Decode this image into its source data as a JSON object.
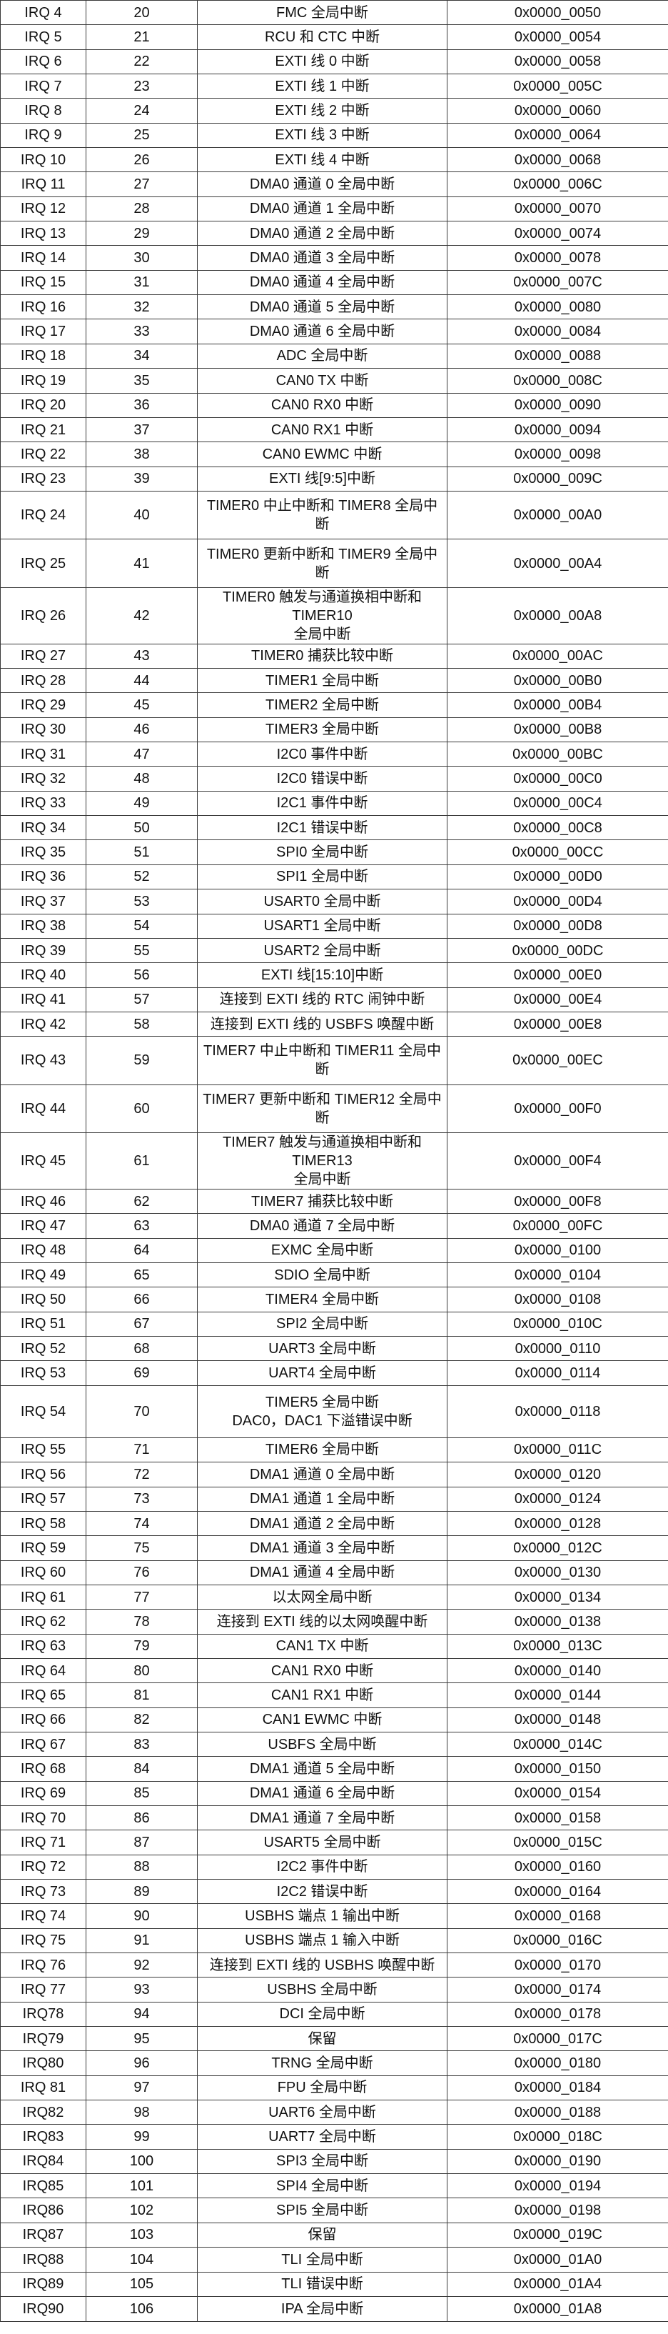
{
  "rows": [
    {
      "irq": "IRQ 4",
      "pos": "20",
      "desc": "FMC 全局中断",
      "addr": "0x0000_0050"
    },
    {
      "irq": "IRQ 5",
      "pos": "21",
      "desc": "RCU 和 CTC 中断",
      "addr": "0x0000_0054"
    },
    {
      "irq": "IRQ 6",
      "pos": "22",
      "desc": "EXTI 线 0 中断",
      "addr": "0x0000_0058"
    },
    {
      "irq": "IRQ 7",
      "pos": "23",
      "desc": "EXTI 线 1 中断",
      "addr": "0x0000_005C"
    },
    {
      "irq": "IRQ 8",
      "pos": "24",
      "desc": "EXTI 线 2 中断",
      "addr": "0x0000_0060"
    },
    {
      "irq": "IRQ 9",
      "pos": "25",
      "desc": "EXTI 线 3 中断",
      "addr": "0x0000_0064"
    },
    {
      "irq": "IRQ 10",
      "pos": "26",
      "desc": "EXTI 线 4 中断",
      "addr": "0x0000_0068"
    },
    {
      "irq": "IRQ 11",
      "pos": "27",
      "desc": "DMA0 通道 0 全局中断",
      "addr": "0x0000_006C"
    },
    {
      "irq": "IRQ 12",
      "pos": "28",
      "desc": "DMA0 通道 1 全局中断",
      "addr": "0x0000_0070"
    },
    {
      "irq": "IRQ 13",
      "pos": "29",
      "desc": "DMA0 通道 2 全局中断",
      "addr": "0x0000_0074"
    },
    {
      "irq": "IRQ 14",
      "pos": "30",
      "desc": "DMA0 通道 3 全局中断",
      "addr": "0x0000_0078"
    },
    {
      "irq": "IRQ 15",
      "pos": "31",
      "desc": "DMA0 通道 4 全局中断",
      "addr": "0x0000_007C"
    },
    {
      "irq": "IRQ 16",
      "pos": "32",
      "desc": "DMA0 通道 5 全局中断",
      "addr": "0x0000_0080"
    },
    {
      "irq": "IRQ 17",
      "pos": "33",
      "desc": "DMA0 通道 6 全局中断",
      "addr": "0x0000_0084"
    },
    {
      "irq": "IRQ 18",
      "pos": "34",
      "desc": "ADC 全局中断",
      "addr": "0x0000_0088"
    },
    {
      "irq": "IRQ 19",
      "pos": "35",
      "desc": "CAN0 TX 中断",
      "addr": "0x0000_008C"
    },
    {
      "irq": "IRQ 20",
      "pos": "36",
      "desc": "CAN0 RX0 中断",
      "addr": "0x0000_0090"
    },
    {
      "irq": "IRQ 21",
      "pos": "37",
      "desc": "CAN0 RX1 中断",
      "addr": "0x0000_0094"
    },
    {
      "irq": "IRQ 22",
      "pos": "38",
      "desc": "CAN0 EWMC 中断",
      "addr": "0x0000_0098"
    },
    {
      "irq": "IRQ 23",
      "pos": "39",
      "desc": "EXTI 线[9:5]中断",
      "addr": "0x0000_009C"
    },
    {
      "irq": "IRQ 24",
      "pos": "40",
      "desc": "TIMER0 中止中断和 TIMER8 全局中断",
      "addr": "0x0000_00A0"
    },
    {
      "irq": "IRQ 25",
      "pos": "41",
      "desc": "TIMER0 更新中断和 TIMER9 全局中断",
      "addr": "0x0000_00A4"
    },
    {
      "irq": "IRQ 26",
      "pos": "42",
      "desc": "TIMER0 触发与通道换相中断和 TIMER10\n全局中断",
      "addr": "0x0000_00A8",
      "tall": true
    },
    {
      "irq": "IRQ 27",
      "pos": "43",
      "desc": "TIMER0 捕获比较中断",
      "addr": "0x0000_00AC"
    },
    {
      "irq": "IRQ 28",
      "pos": "44",
      "desc": "TIMER1 全局中断",
      "addr": "0x0000_00B0"
    },
    {
      "irq": "IRQ 29",
      "pos": "45",
      "desc": "TIMER2 全局中断",
      "addr": "0x0000_00B4"
    },
    {
      "irq": "IRQ 30",
      "pos": "46",
      "desc": "TIMER3 全局中断",
      "addr": "0x0000_00B8"
    },
    {
      "irq": "IRQ 31",
      "pos": "47",
      "desc": "I2C0 事件中断",
      "addr": "0x0000_00BC"
    },
    {
      "irq": "IRQ 32",
      "pos": "48",
      "desc": "I2C0 错误中断",
      "addr": "0x0000_00C0"
    },
    {
      "irq": "IRQ 33",
      "pos": "49",
      "desc": "I2C1 事件中断",
      "addr": "0x0000_00C4"
    },
    {
      "irq": "IRQ 34",
      "pos": "50",
      "desc": "I2C1 错误中断",
      "addr": "0x0000_00C8"
    },
    {
      "irq": "IRQ 35",
      "pos": "51",
      "desc": "SPI0 全局中断",
      "addr": "0x0000_00CC"
    },
    {
      "irq": "IRQ 36",
      "pos": "52",
      "desc": "SPI1 全局中断",
      "addr": "0x0000_00D0"
    },
    {
      "irq": "IRQ 37",
      "pos": "53",
      "desc": "USART0 全局中断",
      "addr": "0x0000_00D4"
    },
    {
      "irq": "IRQ 38",
      "pos": "54",
      "desc": "USART1 全局中断",
      "addr": "0x0000_00D8"
    },
    {
      "irq": "IRQ 39",
      "pos": "55",
      "desc": "USART2 全局中断",
      "addr": "0x0000_00DC"
    },
    {
      "irq": "IRQ 40",
      "pos": "56",
      "desc": "EXTI 线[15:10]中断",
      "addr": "0x0000_00E0"
    },
    {
      "irq": "IRQ 41",
      "pos": "57",
      "desc": "连接到 EXTI 线的 RTC 闹钟中断",
      "addr": "0x0000_00E4"
    },
    {
      "irq": "IRQ 42",
      "pos": "58",
      "desc": "连接到 EXTI 线的 USBFS 唤醒中断",
      "addr": "0x0000_00E8"
    },
    {
      "irq": "IRQ 43",
      "pos": "59",
      "desc": "TIMER7 中止中断和 TIMER11 全局中断",
      "addr": "0x0000_00EC"
    },
    {
      "irq": "IRQ 44",
      "pos": "60",
      "desc": "TIMER7 更新中断和 TIMER12 全局中断",
      "addr": "0x0000_00F0"
    },
    {
      "irq": "IRQ 45",
      "pos": "61",
      "desc": "TIMER7 触发与通道换相中断和 TIMER13\n全局中断",
      "addr": "0x0000_00F4",
      "tall": true
    },
    {
      "irq": "IRQ 46",
      "pos": "62",
      "desc": "TIMER7 捕获比较中断",
      "addr": "0x0000_00F8"
    },
    {
      "irq": "IRQ 47",
      "pos": "63",
      "desc": "DMA0 通道 7 全局中断",
      "addr": "0x0000_00FC"
    },
    {
      "irq": "IRQ 48",
      "pos": "64",
      "desc": "EXMC 全局中断",
      "addr": "0x0000_0100"
    },
    {
      "irq": "IRQ 49",
      "pos": "65",
      "desc": "SDIO 全局中断",
      "addr": "0x0000_0104"
    },
    {
      "irq": "IRQ 50",
      "pos": "66",
      "desc": "TIMER4 全局中断",
      "addr": "0x0000_0108"
    },
    {
      "irq": "IRQ 51",
      "pos": "67",
      "desc": "SPI2 全局中断",
      "addr": "0x0000_010C"
    },
    {
      "irq": "IRQ 52",
      "pos": "68",
      "desc": "UART3 全局中断",
      "addr": "0x0000_0110"
    },
    {
      "irq": "IRQ 53",
      "pos": "69",
      "desc": "UART4 全局中断",
      "addr": "0x0000_0114"
    },
    {
      "irq": "IRQ 54",
      "pos": "70",
      "desc": "TIMER5 全局中断\nDAC0，DAC1 下溢错误中断",
      "addr": "0x0000_0118",
      "tall": true
    },
    {
      "irq": "IRQ 55",
      "pos": "71",
      "desc": "TIMER6 全局中断",
      "addr": "0x0000_011C"
    },
    {
      "irq": "IRQ 56",
      "pos": "72",
      "desc": "DMA1 通道 0 全局中断",
      "addr": "0x0000_0120"
    },
    {
      "irq": "IRQ 57",
      "pos": "73",
      "desc": "DMA1 通道 1 全局中断",
      "addr": "0x0000_0124"
    },
    {
      "irq": "IRQ 58",
      "pos": "74",
      "desc": "DMA1 通道 2 全局中断",
      "addr": "0x0000_0128"
    },
    {
      "irq": "IRQ 59",
      "pos": "75",
      "desc": "DMA1 通道 3 全局中断",
      "addr": "0x0000_012C"
    },
    {
      "irq": "IRQ 60",
      "pos": "76",
      "desc": "DMA1 通道 4 全局中断",
      "addr": "0x0000_0130"
    },
    {
      "irq": "IRQ 61",
      "pos": "77",
      "desc": "以太网全局中断",
      "addr": "0x0000_0134"
    },
    {
      "irq": "IRQ 62",
      "pos": "78",
      "desc": "连接到 EXTI 线的以太网唤醒中断",
      "addr": "0x0000_0138"
    },
    {
      "irq": "IRQ 63",
      "pos": "79",
      "desc": "CAN1 TX 中断",
      "addr": "0x0000_013C"
    },
    {
      "irq": "IRQ 64",
      "pos": "80",
      "desc": "CAN1 RX0 中断",
      "addr": "0x0000_0140"
    },
    {
      "irq": "IRQ 65",
      "pos": "81",
      "desc": "CAN1 RX1 中断",
      "addr": "0x0000_0144"
    },
    {
      "irq": "IRQ 66",
      "pos": "82",
      "desc": "CAN1 EWMC 中断",
      "addr": "0x0000_0148"
    },
    {
      "irq": "IRQ 67",
      "pos": "83",
      "desc": "USBFS 全局中断",
      "addr": "0x0000_014C"
    },
    {
      "irq": "IRQ 68",
      "pos": "84",
      "desc": "DMA1 通道 5 全局中断",
      "addr": "0x0000_0150"
    },
    {
      "irq": "IRQ 69",
      "pos": "85",
      "desc": "DMA1 通道 6 全局中断",
      "addr": "0x0000_0154"
    },
    {
      "irq": "IRQ 70",
      "pos": "86",
      "desc": "DMA1 通道 7 全局中断",
      "addr": "0x0000_0158"
    },
    {
      "irq": "IRQ 71",
      "pos": "87",
      "desc": "USART5 全局中断",
      "addr": "0x0000_015C"
    },
    {
      "irq": "IRQ 72",
      "pos": "88",
      "desc": "I2C2 事件中断",
      "addr": "0x0000_0160"
    },
    {
      "irq": "IRQ 73",
      "pos": "89",
      "desc": "I2C2 错误中断",
      "addr": "0x0000_0164"
    },
    {
      "irq": "IRQ 74",
      "pos": "90",
      "desc": "USBHS 端点 1 输出中断",
      "addr": "0x0000_0168"
    },
    {
      "irq": "IRQ 75",
      "pos": "91",
      "desc": "USBHS 端点 1 输入中断",
      "addr": "0x0000_016C"
    },
    {
      "irq": "IRQ 76",
      "pos": "92",
      "desc": "连接到 EXTI 线的 USBHS 唤醒中断",
      "addr": "0x0000_0170"
    },
    {
      "irq": "IRQ 77",
      "pos": "93",
      "desc": "USBHS 全局中断",
      "addr": "0x0000_0174"
    },
    {
      "irq": "IRQ78",
      "pos": "94",
      "desc": "DCI 全局中断",
      "addr": "0x0000_0178"
    },
    {
      "irq": "IRQ79",
      "pos": "95",
      "desc": "保留",
      "addr": "0x0000_017C"
    },
    {
      "irq": "IRQ80",
      "pos": "96",
      "desc": "TRNG 全局中断",
      "addr": "0x0000_0180"
    },
    {
      "irq": "IRQ 81",
      "pos": "97",
      "desc": "FPU 全局中断",
      "addr": "0x0000_0184"
    },
    {
      "irq": "IRQ82",
      "pos": "98",
      "desc": "UART6 全局中断",
      "addr": "0x0000_0188"
    },
    {
      "irq": "IRQ83",
      "pos": "99",
      "desc": "UART7 全局中断",
      "addr": "0x0000_018C"
    },
    {
      "irq": "IRQ84",
      "pos": "100",
      "desc": "SPI3 全局中断",
      "addr": "0x0000_0190"
    },
    {
      "irq": "IRQ85",
      "pos": "101",
      "desc": "SPI4 全局中断",
      "addr": "0x0000_0194"
    },
    {
      "irq": "IRQ86",
      "pos": "102",
      "desc": "SPI5 全局中断",
      "addr": "0x0000_0198"
    },
    {
      "irq": "IRQ87",
      "pos": "103",
      "desc": "保留",
      "addr": "0x0000_019C"
    },
    {
      "irq": "IRQ88",
      "pos": "104",
      "desc": "TLI 全局中断",
      "addr": "0x0000_01A0"
    },
    {
      "irq": "IRQ89",
      "pos": "105",
      "desc": "TLI 错误中断",
      "addr": "0x0000_01A4"
    },
    {
      "irq": "IRQ90",
      "pos": "106",
      "desc": "IPA 全局中断",
      "addr": "0x0000_01A8"
    }
  ]
}
